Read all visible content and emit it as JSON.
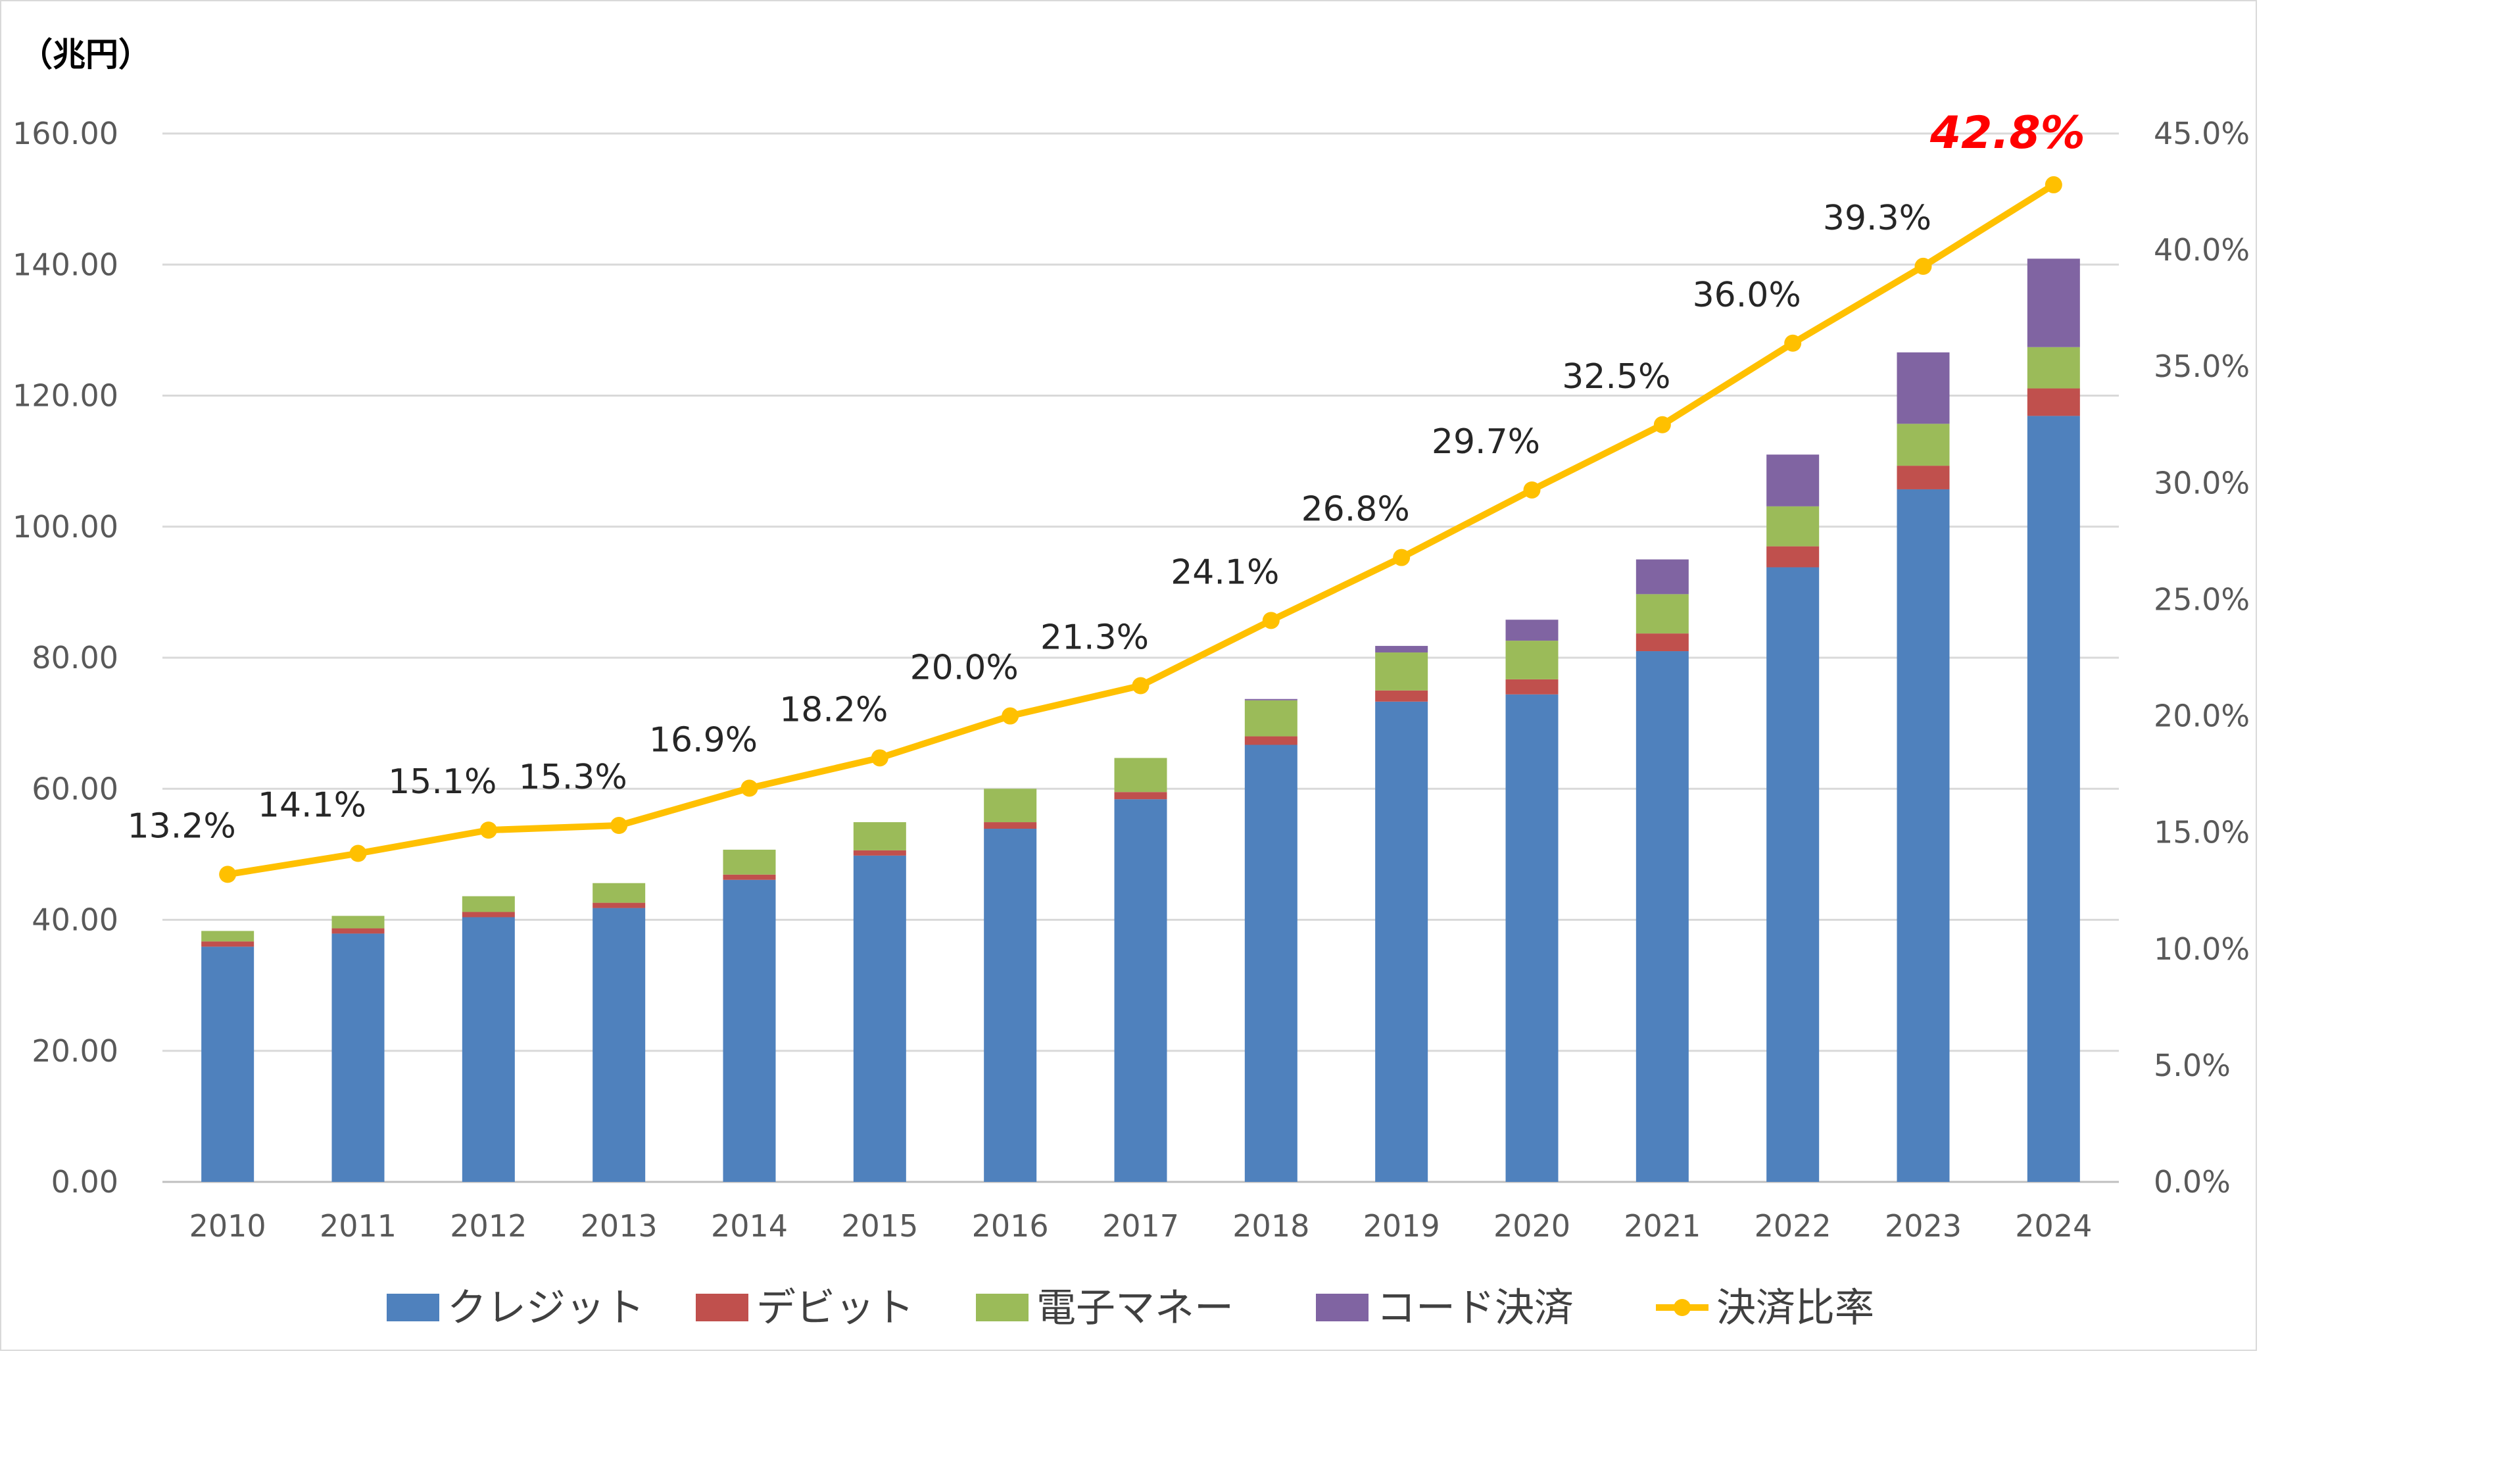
{
  "chart_data": {
    "type": "bar",
    "stacked": true,
    "categories": [
      "2010",
      "2011",
      "2012",
      "2013",
      "2014",
      "2015",
      "2016",
      "2017",
      "2018",
      "2019",
      "2020",
      "2021",
      "2022",
      "2023",
      "2024"
    ],
    "series": [
      {
        "name": "クレジット",
        "color": "#4f81bd",
        "axis": "left",
        "values": [
          35.9,
          37.9,
          40.4,
          41.8,
          46.1,
          49.8,
          53.9,
          58.4,
          66.7,
          73.3,
          74.4,
          81.0,
          93.8,
          105.7,
          116.9
        ]
      },
      {
        "name": "デビット",
        "color": "#c0504d",
        "axis": "left",
        "values": [
          0.8,
          0.8,
          0.8,
          0.8,
          0.8,
          0.8,
          1.0,
          1.1,
          1.3,
          1.7,
          2.3,
          2.7,
          3.2,
          3.6,
          4.2
        ]
      },
      {
        "name": "電子マネー",
        "color": "#9bbb59",
        "axis": "left",
        "values": [
          1.6,
          1.9,
          2.4,
          3.0,
          3.8,
          4.3,
          5.1,
          5.2,
          5.5,
          5.8,
          5.9,
          6.0,
          6.1,
          6.4,
          6.3
        ]
      },
      {
        "name": "コード決済",
        "color": "#8064a2",
        "axis": "left",
        "values": [
          0,
          0,
          0,
          0,
          0,
          0,
          0,
          0,
          0.2,
          1.0,
          3.2,
          5.3,
          7.9,
          10.9,
          13.5
        ]
      },
      {
        "name": "決済比率",
        "type": "line",
        "color": "#ffc000",
        "axis": "right",
        "values": [
          13.2,
          14.1,
          15.1,
          15.3,
          16.9,
          18.2,
          20.0,
          21.3,
          24.1,
          26.8,
          29.7,
          32.5,
          36.0,
          39.3,
          42.8
        ],
        "labels": [
          "13.2%",
          "14.1%",
          "15.1%",
          "15.3%",
          "16.9%",
          "18.2%",
          "20.0%",
          "21.3%",
          "24.1%",
          "26.8%",
          "29.7%",
          "32.5%",
          "36.0%",
          "39.3%",
          "42.8%"
        ]
      }
    ],
    "left_axis": {
      "unit_label": "（兆円）",
      "min": 0,
      "max": 160,
      "step": 20,
      "ticks": [
        "0.00",
        "20.00",
        "40.00",
        "60.00",
        "80.00",
        "100.00",
        "120.00",
        "140.00",
        "160.00"
      ]
    },
    "right_axis": {
      "min": 0,
      "max": 45,
      "step": 5,
      "ticks": [
        "0.0%",
        "5.0%",
        "10.0%",
        "15.0%",
        "20.0%",
        "25.0%",
        "30.0%",
        "35.0%",
        "40.0%",
        "45.0%"
      ]
    },
    "grid": true,
    "legend_position": "bottom",
    "highlight_last_label_color": "#ff0000"
  }
}
